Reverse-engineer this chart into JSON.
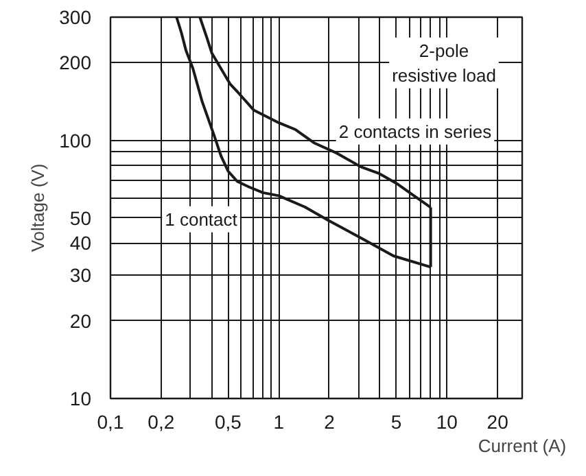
{
  "chart_data": {
    "type": "line",
    "xlabel": "Current (A)",
    "ylabel": "Voltage (V)",
    "log": "xy",
    "grid": true,
    "xlim": [
      0.1,
      28
    ],
    "ylim": [
      10,
      300
    ],
    "xticks": [
      {
        "value": 0.1,
        "label": "0,1"
      },
      {
        "value": 0.2,
        "label": "0,2"
      },
      {
        "value": 0.3,
        "label": null
      },
      {
        "value": 0.4,
        "label": null
      },
      {
        "value": 0.5,
        "label": "0,5"
      },
      {
        "value": 0.6,
        "label": null
      },
      {
        "value": 0.7,
        "label": null
      },
      {
        "value": 0.8,
        "label": null
      },
      {
        "value": 0.9,
        "label": null
      },
      1,
      2,
      {
        "value": 3,
        "label": null
      },
      {
        "value": 4,
        "label": null
      },
      5,
      {
        "value": 6,
        "label": null
      },
      {
        "value": 7,
        "label": null
      },
      {
        "value": 8,
        "label": null
      },
      {
        "value": 9,
        "label": null
      },
      10,
      20
    ],
    "yticks": [
      10,
      20,
      30,
      40,
      50,
      {
        "value": 60,
        "label": null
      },
      {
        "value": 70,
        "label": null
      },
      {
        "value": 80,
        "label": null
      },
      {
        "value": 90,
        "label": null
      },
      100,
      200,
      300
    ],
    "series": [
      {
        "color": "#1a1a1a",
        "x": [
          0.247,
          0.264,
          0.281,
          0.309,
          0.351,
          0.412,
          0.454,
          0.5,
          0.567,
          0.665,
          0.805,
          1,
          1.43,
          1.97,
          3.07,
          4.8,
          8
        ],
        "values": [
          300,
          261,
          223,
          190,
          141,
          105,
          87,
          76,
          69.3,
          66,
          62.7,
          61,
          55.2,
          49,
          41.9,
          35.7,
          32.3
        ]
      },
      {
        "color": "#1a1a1a",
        "x": [
          0.34,
          0.374,
          0.4,
          0.515,
          0.585,
          0.71,
          1,
          1.26,
          1.62,
          2.23,
          3.07,
          3.97,
          5.1,
          6.2,
          8
        ],
        "values": [
          300,
          250,
          218,
          165,
          151,
          131,
          117,
          110,
          97.8,
          89,
          79,
          74.3,
          67.6,
          61.8,
          55
        ]
      },
      {
        "color": "#1a1a1a",
        "x": [
          8,
          8
        ],
        "values": [
          32.3,
          55
        ]
      }
    ],
    "annotations": [
      "1 contact",
      "2 contacts in series",
      "2-pole\nresistive load"
    ]
  }
}
